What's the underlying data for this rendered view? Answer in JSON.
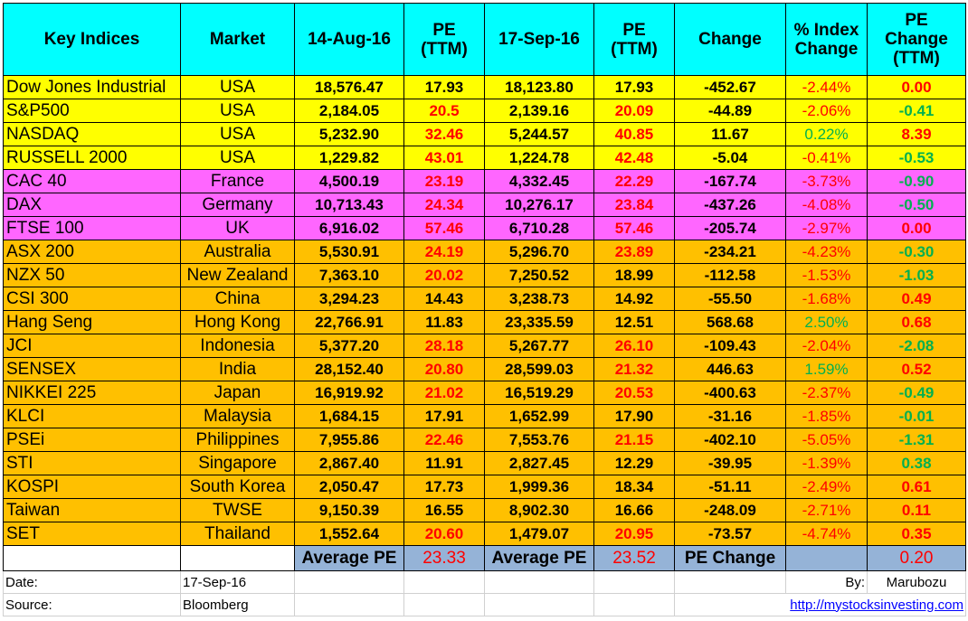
{
  "headers": [
    "Key Indices",
    "Market",
    "14-Aug-16",
    "PE\n(TTM)",
    "17-Sep-16",
    "PE\n(TTM)",
    "Change",
    "% Index\nChange",
    "PE\nChange\n(TTM)"
  ],
  "colors": {
    "header_bg": "#00ffff",
    "usa_rows": "#ffff00",
    "europe_rows": "#ff66ff",
    "asia_rows": "#ffc000",
    "summary_bg": "#95b3d7",
    "negative": "#ff0000",
    "positive": "#00b050"
  },
  "rows": [
    {
      "index": "Dow Jones Industrial",
      "market": "USA",
      "aug_value": "18,576.47",
      "aug_pe": "17.93",
      "sep_value": "18,123.80",
      "sep_pe": "17.93",
      "change": "-452.67",
      "pct_change": "-2.44%",
      "pe_change": "0.00",
      "group": "yellow",
      "aug_pe_color": "black",
      "sep_pe_color": "black",
      "pct_color": "red",
      "pe_change_color": "red"
    },
    {
      "index": "S&P500",
      "market": "USA",
      "aug_value": "2,184.05",
      "aug_pe": "20.5",
      "sep_value": "2,139.16",
      "sep_pe": "20.09",
      "change": "-44.89",
      "pct_change": "-2.06%",
      "pe_change": "-0.41",
      "group": "yellow",
      "aug_pe_color": "red",
      "sep_pe_color": "red",
      "pct_color": "red",
      "pe_change_color": "green"
    },
    {
      "index": "NASDAQ",
      "market": "USA",
      "aug_value": "5,232.90",
      "aug_pe": "32.46",
      "sep_value": "5,244.57",
      "sep_pe": "40.85",
      "change": "11.67",
      "pct_change": "0.22%",
      "pe_change": "8.39",
      "group": "yellow",
      "aug_pe_color": "red",
      "sep_pe_color": "red",
      "pct_color": "green",
      "pe_change_color": "red"
    },
    {
      "index": "RUSSELL 2000",
      "market": "USA",
      "aug_value": "1,229.82",
      "aug_pe": "43.01",
      "sep_value": "1,224.78",
      "sep_pe": "42.48",
      "change": "-5.04",
      "pct_change": "-0.41%",
      "pe_change": "-0.53",
      "group": "yellow",
      "aug_pe_color": "red",
      "sep_pe_color": "red",
      "pct_color": "red",
      "pe_change_color": "green"
    },
    {
      "index": "CAC 40",
      "market": "France",
      "aug_value": "4,500.19",
      "aug_pe": "23.19",
      "sep_value": "4,332.45",
      "sep_pe": "22.29",
      "change": "-167.74",
      "pct_change": "-3.73%",
      "pe_change": "-0.90",
      "group": "pink",
      "aug_pe_color": "red",
      "sep_pe_color": "red",
      "pct_color": "red",
      "pe_change_color": "green"
    },
    {
      "index": "DAX",
      "market": "Germany",
      "aug_value": "10,713.43",
      "aug_pe": "24.34",
      "sep_value": "10,276.17",
      "sep_pe": "23.84",
      "change": "-437.26",
      "pct_change": "-4.08%",
      "pe_change": "-0.50",
      "group": "pink",
      "aug_pe_color": "red",
      "sep_pe_color": "red",
      "pct_color": "red",
      "pe_change_color": "green"
    },
    {
      "index": "FTSE 100",
      "market": "UK",
      "aug_value": "6,916.02",
      "aug_pe": "57.46",
      "sep_value": "6,710.28",
      "sep_pe": "57.46",
      "change": "-205.74",
      "pct_change": "-2.97%",
      "pe_change": "0.00",
      "group": "pink",
      "aug_pe_color": "red",
      "sep_pe_color": "red",
      "pct_color": "red",
      "pe_change_color": "red"
    },
    {
      "index": "ASX 200",
      "market": "Australia",
      "aug_value": "5,530.91",
      "aug_pe": "24.19",
      "sep_value": "5,296.70",
      "sep_pe": "23.89",
      "change": "-234.21",
      "pct_change": "-4.23%",
      "pe_change": "-0.30",
      "group": "orange",
      "aug_pe_color": "red",
      "sep_pe_color": "red",
      "pct_color": "red",
      "pe_change_color": "green"
    },
    {
      "index": "NZX 50",
      "market": "New Zealand",
      "aug_value": "7,363.10",
      "aug_pe": "20.02",
      "sep_value": "7,250.52",
      "sep_pe": "18.99",
      "change": "-112.58",
      "pct_change": "-1.53%",
      "pe_change": "-1.03",
      "group": "orange",
      "aug_pe_color": "red",
      "sep_pe_color": "black",
      "pct_color": "red",
      "pe_change_color": "green"
    },
    {
      "index": "CSI 300",
      "market": "China",
      "aug_value": "3,294.23",
      "aug_pe": "14.43",
      "sep_value": "3,238.73",
      "sep_pe": "14.92",
      "change": "-55.50",
      "pct_change": "-1.68%",
      "pe_change": "0.49",
      "group": "orange",
      "aug_pe_color": "black",
      "sep_pe_color": "black",
      "pct_color": "red",
      "pe_change_color": "red"
    },
    {
      "index": "Hang Seng",
      "market": "Hong Kong",
      "aug_value": "22,766.91",
      "aug_pe": "11.83",
      "sep_value": "23,335.59",
      "sep_pe": "12.51",
      "change": "568.68",
      "pct_change": "2.50%",
      "pe_change": "0.68",
      "group": "orange",
      "aug_pe_color": "black",
      "sep_pe_color": "black",
      "pct_color": "green",
      "pe_change_color": "red"
    },
    {
      "index": "JCI",
      "market": "Indonesia",
      "aug_value": "5,377.20",
      "aug_pe": "28.18",
      "sep_value": "5,267.77",
      "sep_pe": "26.10",
      "change": "-109.43",
      "pct_change": "-2.04%",
      "pe_change": "-2.08",
      "group": "orange",
      "aug_pe_color": "red",
      "sep_pe_color": "red",
      "pct_color": "red",
      "pe_change_color": "green"
    },
    {
      "index": "SENSEX",
      "market": "India",
      "aug_value": "28,152.40",
      "aug_pe": "20.80",
      "sep_value": "28,599.03",
      "sep_pe": "21.32",
      "change": "446.63",
      "pct_change": "1.59%",
      "pe_change": "0.52",
      "group": "orange",
      "aug_pe_color": "red",
      "sep_pe_color": "red",
      "pct_color": "green",
      "pe_change_color": "red"
    },
    {
      "index": "NIKKEI 225",
      "market": "Japan",
      "aug_value": "16,919.92",
      "aug_pe": "21.02",
      "sep_value": "16,519.29",
      "sep_pe": "20.53",
      "change": "-400.63",
      "pct_change": "-2.37%",
      "pe_change": "-0.49",
      "group": "orange",
      "aug_pe_color": "red",
      "sep_pe_color": "red",
      "pct_color": "red",
      "pe_change_color": "green"
    },
    {
      "index": "KLCI",
      "market": "Malaysia",
      "aug_value": "1,684.15",
      "aug_pe": "17.91",
      "sep_value": "1,652.99",
      "sep_pe": "17.90",
      "change": "-31.16",
      "pct_change": "-1.85%",
      "pe_change": "-0.01",
      "group": "orange",
      "aug_pe_color": "black",
      "sep_pe_color": "black",
      "pct_color": "red",
      "pe_change_color": "green"
    },
    {
      "index": "PSEi",
      "market": "Philippines",
      "aug_value": "7,955.86",
      "aug_pe": "22.46",
      "sep_value": "7,553.76",
      "sep_pe": "21.15",
      "change": "-402.10",
      "pct_change": "-5.05%",
      "pe_change": "-1.31",
      "group": "orange",
      "aug_pe_color": "red",
      "sep_pe_color": "red",
      "pct_color": "red",
      "pe_change_color": "green"
    },
    {
      "index": "STI",
      "market": "Singapore",
      "aug_value": "2,867.40",
      "aug_pe": "11.91",
      "sep_value": "2,827.45",
      "sep_pe": "12.29",
      "change": "-39.95",
      "pct_change": "-1.39%",
      "pe_change": "0.38",
      "group": "orange",
      "aug_pe_color": "black",
      "sep_pe_color": "black",
      "pct_color": "red",
      "pe_change_color": "green"
    },
    {
      "index": "KOSPI",
      "market": "South Korea",
      "aug_value": "2,050.47",
      "aug_pe": "17.73",
      "sep_value": "1,999.36",
      "sep_pe": "18.34",
      "change": "-51.11",
      "pct_change": "-2.49%",
      "pe_change": "0.61",
      "group": "orange",
      "aug_pe_color": "black",
      "sep_pe_color": "black",
      "pct_color": "red",
      "pe_change_color": "red"
    },
    {
      "index": "Taiwan",
      "market": "TWSE",
      "aug_value": "9,150.39",
      "aug_pe": "16.55",
      "sep_value": "8,902.30",
      "sep_pe": "16.66",
      "change": "-248.09",
      "pct_change": "-2.71%",
      "pe_change": "0.11",
      "group": "orange",
      "aug_pe_color": "black",
      "sep_pe_color": "black",
      "pct_color": "red",
      "pe_change_color": "red"
    },
    {
      "index": "SET",
      "market": "Thailand",
      "aug_value": "1,552.64",
      "aug_pe": "20.60",
      "sep_value": "1,479.07",
      "sep_pe": "20.95",
      "change": "-73.57",
      "pct_change": "-4.74%",
      "pe_change": "0.35",
      "group": "orange",
      "aug_pe_color": "red",
      "sep_pe_color": "red",
      "pct_color": "red",
      "pe_change_color": "red"
    }
  ],
  "summary": {
    "avg_pe_label_1": "Average PE",
    "avg_pe_1": "23.33",
    "avg_pe_label_2": "Average PE",
    "avg_pe_2": "23.52",
    "pe_change_label": "PE Change",
    "pe_change": "0.20"
  },
  "footer": {
    "date_label": "Date:",
    "date_value": "17-Sep-16",
    "by_label": "By:",
    "by_value": "Marubozu",
    "source_label": "Source:",
    "source_value": "Bloomberg",
    "link": "http://mystocksinvesting.com"
  }
}
